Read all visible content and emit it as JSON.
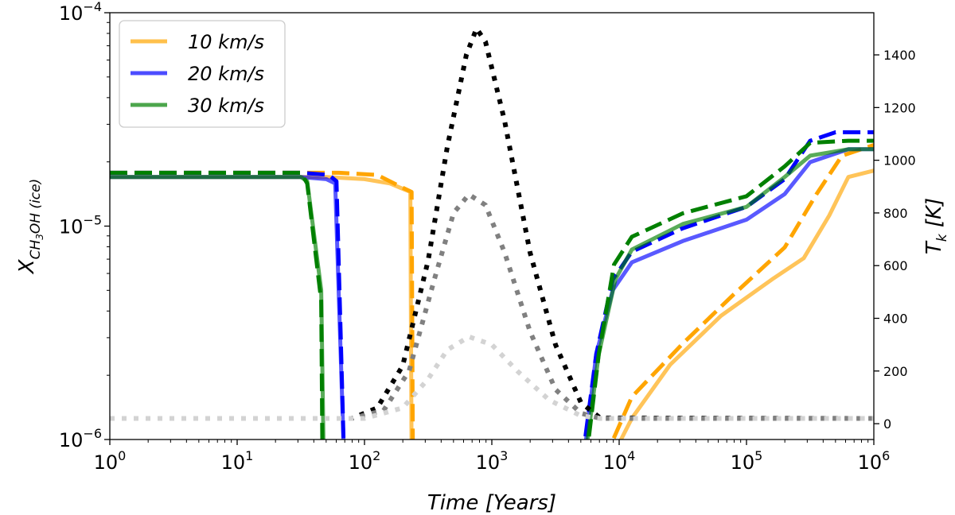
{
  "chart_data": {
    "type": "line",
    "title": "",
    "xlabel": "Time [Years]",
    "ylabel": "X_CH3OH (ice)",
    "ylabel_parts": {
      "base": "X",
      "sub_species_pre": "CH",
      "sub_species_num": "3",
      "sub_species_post": "OH",
      "sub_phase": "(ice)"
    },
    "y2label": "T_k [K]",
    "y2label_parts": {
      "base": "T",
      "sub": "k",
      "unit": "[K]"
    },
    "x_scale": "log",
    "y_scale": "log",
    "xlim": [
      1,
      1000000
    ],
    "ylim": [
      1e-06,
      0.0001
    ],
    "y2lim": [
      -60,
      1560
    ],
    "x_ticks": [
      {
        "value": 1,
        "base": "10",
        "exp": "0"
      },
      {
        "value": 10,
        "base": "10",
        "exp": "1"
      },
      {
        "value": 100,
        "base": "10",
        "exp": "2"
      },
      {
        "value": 1000,
        "base": "10",
        "exp": "3"
      },
      {
        "value": 10000,
        "base": "10",
        "exp": "4"
      },
      {
        "value": 100000,
        "base": "10",
        "exp": "5"
      },
      {
        "value": 1000000,
        "base": "10",
        "exp": "6"
      }
    ],
    "y_ticks": [
      {
        "value": 1e-06,
        "base": "10",
        "exp": "−6"
      },
      {
        "value": 1e-05,
        "base": "10",
        "exp": "−5"
      },
      {
        "value": 0.0001,
        "base": "10",
        "exp": "−4"
      }
    ],
    "y2_ticks": [
      "0",
      "200",
      "400",
      "600",
      "800",
      "1000",
      "1200",
      "1400"
    ],
    "legend": {
      "placement": "top-left",
      "entries": [
        {
          "label": "10 km/s",
          "color": "#ffa500"
        },
        {
          "label": "20 km/s",
          "color": "#0000ff"
        },
        {
          "label": "30 km/s",
          "color": "#008000"
        }
      ]
    },
    "series": [
      {
        "name": "10 km/s ice (solid)",
        "color": "#ffa500",
        "style": "solid",
        "opacity": 0.65,
        "axis": "left",
        "log10_points": [
          [
            0,
            -4.77
          ],
          [
            1.3,
            -4.77
          ],
          [
            1.7,
            -4.77
          ],
          [
            2,
            -4.78
          ],
          [
            2.2,
            -4.8
          ],
          [
            2.36,
            -4.84
          ],
          [
            2.37,
            -6.1
          ]
        ]
      },
      {
        "name": "10 km/s ice (dashed)",
        "color": "#ffa500",
        "style": "dashed",
        "opacity": 1,
        "axis": "left",
        "log10_points": [
          [
            0,
            -4.75
          ],
          [
            1.5,
            -4.75
          ],
          [
            1.8,
            -4.75
          ],
          [
            2.1,
            -4.76
          ],
          [
            2.3,
            -4.82
          ],
          [
            2.37,
            -4.84
          ],
          [
            2.38,
            -6.1
          ]
        ]
      },
      {
        "name": "20 km/s ice (solid)",
        "color": "#0000ff",
        "style": "solid",
        "opacity": 0.65,
        "axis": "left",
        "log10_points": [
          [
            0,
            -4.77
          ],
          [
            1.5,
            -4.77
          ],
          [
            1.7,
            -4.78
          ],
          [
            1.77,
            -4.8
          ],
          [
            1.84,
            -6.1
          ]
        ]
      },
      {
        "name": "20 km/s ice (dashed)",
        "color": "#0000ff",
        "style": "dashed",
        "opacity": 1,
        "axis": "left",
        "log10_points": [
          [
            0,
            -4.75
          ],
          [
            1.5,
            -4.75
          ],
          [
            1.72,
            -4.76
          ],
          [
            1.78,
            -4.79
          ],
          [
            1.84,
            -6.1
          ]
        ]
      },
      {
        "name": "30 km/s ice (solid)",
        "color": "#008000",
        "style": "solid",
        "opacity": 0.65,
        "axis": "left",
        "log10_points": [
          [
            0,
            -4.77
          ],
          [
            1.5,
            -4.77
          ],
          [
            1.55,
            -4.79
          ],
          [
            1.66,
            -5.3
          ],
          [
            1.68,
            -6.1
          ]
        ]
      },
      {
        "name": "30 km/s ice (dashed)",
        "color": "#008000",
        "style": "dashed",
        "opacity": 1,
        "axis": "left",
        "log10_points": [
          [
            0,
            -4.75
          ],
          [
            1.5,
            -4.75
          ],
          [
            1.55,
            -4.8
          ],
          [
            1.66,
            -5.35
          ],
          [
            1.67,
            -6.1
          ]
        ]
      },
      {
        "name": "10 km/s reform (solid)",
        "color": "#ffa500",
        "style": "solid",
        "opacity": 0.65,
        "axis": "left",
        "log10_points": [
          [
            3.93,
            -6.1
          ],
          [
            4.1,
            -5.9
          ],
          [
            4.4,
            -5.65
          ],
          [
            4.8,
            -5.42
          ],
          [
            5.2,
            -5.25
          ],
          [
            5.45,
            -5.15
          ],
          [
            5.65,
            -4.95
          ],
          [
            5.8,
            -4.77
          ],
          [
            6,
            -4.74
          ]
        ]
      },
      {
        "name": "10 km/s reform (dashed)",
        "color": "#ffa500",
        "style": "dashed",
        "opacity": 1,
        "axis": "left",
        "log10_points": [
          [
            3.88,
            -6.1
          ],
          [
            4.1,
            -5.8
          ],
          [
            4.5,
            -5.55
          ],
          [
            4.9,
            -5.32
          ],
          [
            5.3,
            -5.1
          ],
          [
            5.55,
            -4.85
          ],
          [
            5.75,
            -4.67
          ],
          [
            6,
            -4.62
          ]
        ]
      },
      {
        "name": "20 km/s reform (solid)",
        "color": "#0000ff",
        "style": "solid",
        "opacity": 0.65,
        "axis": "left",
        "log10_points": [
          [
            3.72,
            -6.1
          ],
          [
            3.82,
            -5.6
          ],
          [
            3.95,
            -5.3
          ],
          [
            4.1,
            -5.17
          ],
          [
            4.5,
            -5.07
          ],
          [
            5,
            -4.97
          ],
          [
            5.3,
            -4.85
          ],
          [
            5.5,
            -4.7
          ],
          [
            5.8,
            -4.64
          ],
          [
            6,
            -4.64
          ]
        ]
      },
      {
        "name": "20 km/s reform (dashed)",
        "color": "#0000ff",
        "style": "dashed",
        "opacity": 1,
        "axis": "left",
        "log10_points": [
          [
            3.71,
            -6.1
          ],
          [
            3.82,
            -5.6
          ],
          [
            3.95,
            -5.25
          ],
          [
            4.1,
            -5.12
          ],
          [
            4.5,
            -5.01
          ],
          [
            5,
            -4.91
          ],
          [
            5.3,
            -4.78
          ],
          [
            5.5,
            -4.6
          ],
          [
            5.7,
            -4.56
          ],
          [
            6,
            -4.56
          ]
        ]
      },
      {
        "name": "30 km/s reform (solid)",
        "color": "#008000",
        "style": "solid",
        "opacity": 0.65,
        "axis": "left",
        "log10_points": [
          [
            3.73,
            -6.1
          ],
          [
            3.84,
            -5.6
          ],
          [
            3.97,
            -5.25
          ],
          [
            4.1,
            -5.11
          ],
          [
            4.5,
            -4.99
          ],
          [
            5,
            -4.91
          ],
          [
            5.3,
            -4.77
          ],
          [
            5.5,
            -4.67
          ],
          [
            5.8,
            -4.64
          ],
          [
            6,
            -4.64
          ]
        ]
      },
      {
        "name": "30 km/s reform (dashed)",
        "color": "#008000",
        "style": "dashed",
        "opacity": 1,
        "axis": "left",
        "log10_points": [
          [
            3.74,
            -6.1
          ],
          [
            3.84,
            -5.6
          ],
          [
            3.96,
            -5.18
          ],
          [
            4.1,
            -5.05
          ],
          [
            4.5,
            -4.94
          ],
          [
            5,
            -4.86
          ],
          [
            5.3,
            -4.72
          ],
          [
            5.5,
            -4.61
          ],
          [
            5.8,
            -4.6
          ],
          [
            6,
            -4.6
          ]
        ]
      },
      {
        "name": "T_k 30 km/s",
        "color": "#000000",
        "style": "dotted",
        "opacity": 1,
        "axis": "right",
        "log10_points": [
          [
            0,
            20
          ],
          [
            1.9,
            20
          ],
          [
            2.1,
            60
          ],
          [
            2.3,
            220
          ],
          [
            2.5,
            620
          ],
          [
            2.65,
            1050
          ],
          [
            2.8,
            1400
          ],
          [
            2.88,
            1500
          ],
          [
            2.95,
            1450
          ],
          [
            3.1,
            1150
          ],
          [
            3.3,
            650
          ],
          [
            3.5,
            300
          ],
          [
            3.7,
            80
          ],
          [
            3.85,
            22
          ],
          [
            6,
            20
          ]
        ]
      },
      {
        "name": "T_k 20 km/s",
        "color": "#808080",
        "style": "dotted",
        "opacity": 1,
        "axis": "right",
        "log10_points": [
          [
            0,
            20
          ],
          [
            1.9,
            20
          ],
          [
            2.15,
            50
          ],
          [
            2.35,
            200
          ],
          [
            2.55,
            550
          ],
          [
            2.7,
            800
          ],
          [
            2.82,
            870
          ],
          [
            2.95,
            830
          ],
          [
            3.1,
            650
          ],
          [
            3.3,
            350
          ],
          [
            3.5,
            130
          ],
          [
            3.7,
            40
          ],
          [
            3.85,
            20
          ],
          [
            6,
            20
          ]
        ]
      },
      {
        "name": "T_k 10 km/s",
        "color": "#d3d3d3",
        "style": "dotted",
        "opacity": 1,
        "axis": "right",
        "log10_points": [
          [
            0,
            20
          ],
          [
            2,
            20
          ],
          [
            2.3,
            60
          ],
          [
            2.5,
            170
          ],
          [
            2.65,
            280
          ],
          [
            2.82,
            330
          ],
          [
            3,
            300
          ],
          [
            3.2,
            200
          ],
          [
            3.45,
            90
          ],
          [
            3.7,
            30
          ],
          [
            3.85,
            20
          ],
          [
            6,
            20
          ]
        ]
      }
    ]
  }
}
